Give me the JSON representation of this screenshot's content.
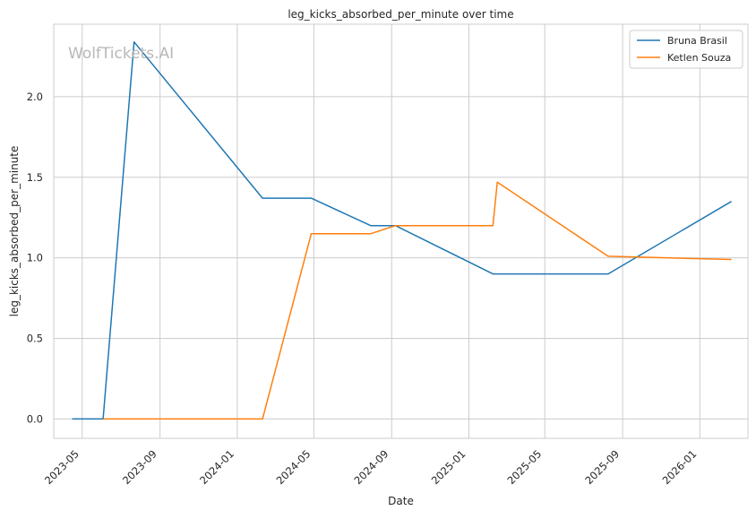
{
  "chart_data": {
    "type": "line",
    "title": "leg_kicks_absorbed_per_minute over time",
    "xlabel": "Date",
    "ylabel": "leg_kicks_absorbed_per_minute",
    "watermark": "WolfTickets.AI",
    "grid": true,
    "legend_position": "top-right",
    "xlim": [
      "2023-03-17",
      "2026-03-18"
    ],
    "ylim": [
      -0.12,
      2.45
    ],
    "x_ticks": [
      "2023-05",
      "2023-09",
      "2024-01",
      "2024-05",
      "2024-09",
      "2025-01",
      "2025-05",
      "2025-09",
      "2026-01"
    ],
    "x_tick_dates": [
      "2023-05-01",
      "2023-09-01",
      "2024-01-01",
      "2024-05-01",
      "2024-09-01",
      "2025-01-01",
      "2025-05-01",
      "2025-09-01",
      "2026-01-01"
    ],
    "y_ticks": [
      "0.0",
      "0.5",
      "1.0",
      "1.5",
      "2.0"
    ],
    "y_tick_values": [
      0,
      0.5,
      1.0,
      1.5,
      2.0
    ],
    "series": [
      {
        "name": "Bruna Brasil",
        "color": "#1f77b4",
        "points": [
          {
            "x": "2023-04-15",
            "y": 0.0
          },
          {
            "x": "2023-06-03",
            "y": 0.0
          },
          {
            "x": "2023-07-22",
            "y": 2.34
          },
          {
            "x": "2024-02-10",
            "y": 1.37
          },
          {
            "x": "2024-04-27",
            "y": 1.37
          },
          {
            "x": "2024-07-30",
            "y": 1.2
          },
          {
            "x": "2024-09-07",
            "y": 1.2
          },
          {
            "x": "2025-02-08",
            "y": 0.9
          },
          {
            "x": "2025-08-09",
            "y": 0.9
          },
          {
            "x": "2026-02-20",
            "y": 1.35
          }
        ]
      },
      {
        "name": "Ketlen Souza",
        "color": "#ff7f0e",
        "points": [
          {
            "x": "2023-06-03",
            "y": 0.0
          },
          {
            "x": "2024-02-10",
            "y": 0.0
          },
          {
            "x": "2024-04-27",
            "y": 1.15
          },
          {
            "x": "2024-07-30",
            "y": 1.15
          },
          {
            "x": "2024-09-07",
            "y": 1.2
          },
          {
            "x": "2025-02-08",
            "y": 1.2
          },
          {
            "x": "2025-02-15",
            "y": 1.47
          },
          {
            "x": "2025-08-09",
            "y": 1.01
          },
          {
            "x": "2026-02-20",
            "y": 0.99
          }
        ]
      }
    ]
  }
}
